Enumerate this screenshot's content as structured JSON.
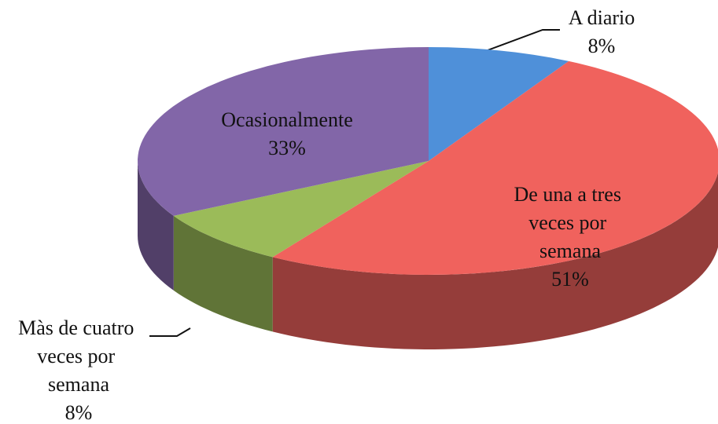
{
  "chart_data": {
    "type": "pie3d",
    "categories": [
      "A diario",
      "De una a tres veces por semana",
      "Màs de cuatro veces por semana",
      "Ocasionalmente"
    ],
    "values": [
      8,
      51,
      8,
      33
    ],
    "value_labels": [
      "8%",
      "51%",
      "8%",
      "33%"
    ],
    "colors": [
      "#4f90d9",
      "#f0625d",
      "#9bbb59",
      "#8266a8"
    ]
  }
}
